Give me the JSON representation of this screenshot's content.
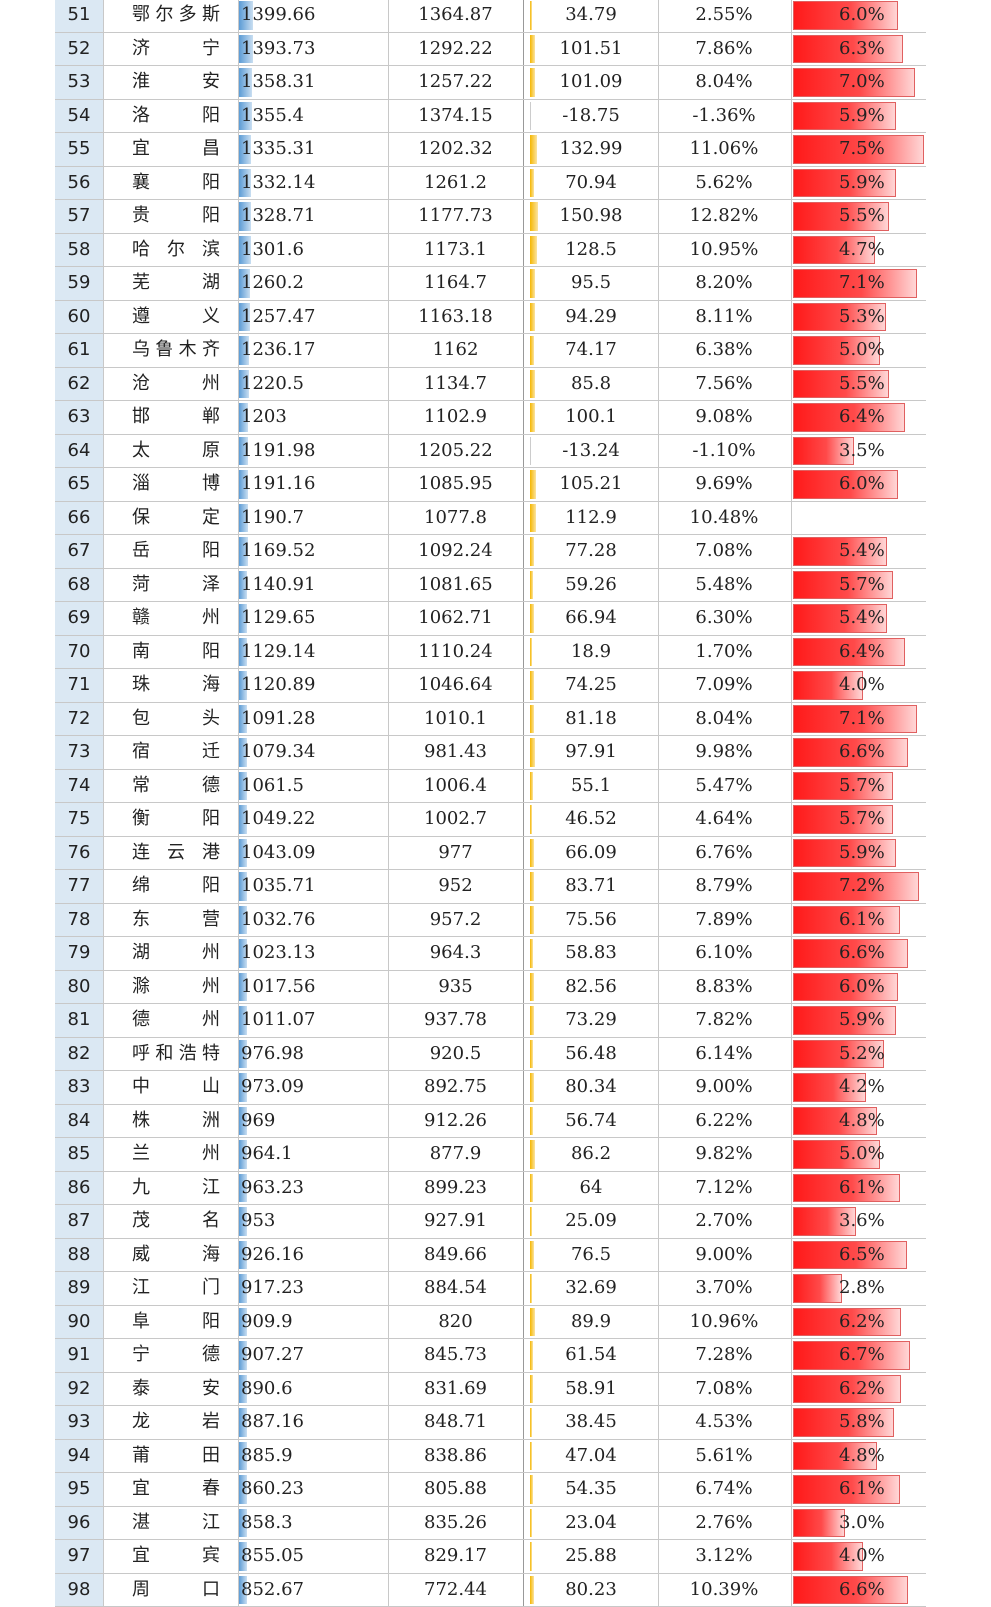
{
  "table": {
    "rows": [
      {
        "rank": "51",
        "city": "鄂尔多斯",
        "gdp": "1399.66",
        "prev": "1364.87",
        "inc": "34.79",
        "rate": "2.55%",
        "share": "6.0%",
        "share_value": 6.0,
        "gdp_value": 1399.66,
        "inc_value": 34.79
      },
      {
        "rank": "52",
        "city": "济 宁",
        "gdp": "1393.73",
        "prev": "1292.22",
        "inc": "101.51",
        "rate": "7.86%",
        "share": "6.3%",
        "share_value": 6.3,
        "gdp_value": 1393.73,
        "inc_value": 101.51
      },
      {
        "rank": "53",
        "city": "淮 安",
        "gdp": "1358.31",
        "prev": "1257.22",
        "inc": "101.09",
        "rate": "8.04%",
        "share": "7.0%",
        "share_value": 7.0,
        "gdp_value": 1358.31,
        "inc_value": 101.09
      },
      {
        "rank": "54",
        "city": "洛 阳",
        "gdp": "1355.4",
        "prev": "1374.15",
        "inc": "-18.75",
        "rate": "-1.36%",
        "share": "5.9%",
        "share_value": 5.9,
        "gdp_value": 1355.4,
        "inc_value": -18.75
      },
      {
        "rank": "55",
        "city": "宜 昌",
        "gdp": "1335.31",
        "prev": "1202.32",
        "inc": "132.99",
        "rate": "11.06%",
        "share": "7.5%",
        "share_value": 7.5,
        "gdp_value": 1335.31,
        "inc_value": 132.99
      },
      {
        "rank": "56",
        "city": "襄 阳",
        "gdp": "1332.14",
        "prev": "1261.2",
        "inc": "70.94",
        "rate": "5.62%",
        "share": "5.9%",
        "share_value": 5.9,
        "gdp_value": 1332.14,
        "inc_value": 70.94
      },
      {
        "rank": "57",
        "city": "贵 阳",
        "gdp": "1328.71",
        "prev": "1177.73",
        "inc": "150.98",
        "rate": "12.82%",
        "share": "5.5%",
        "share_value": 5.5,
        "gdp_value": 1328.71,
        "inc_value": 150.98
      },
      {
        "rank": "58",
        "city": "哈尔滨",
        "gdp": "1301.6",
        "prev": "1173.1",
        "inc": "128.5",
        "rate": "10.95%",
        "share": "4.7%",
        "share_value": 4.7,
        "gdp_value": 1301.6,
        "inc_value": 128.5
      },
      {
        "rank": "59",
        "city": "芜 湖",
        "gdp": "1260.2",
        "prev": "1164.7",
        "inc": "95.5",
        "rate": "8.20%",
        "share": "7.1%",
        "share_value": 7.1,
        "gdp_value": 1260.2,
        "inc_value": 95.5
      },
      {
        "rank": "60",
        "city": "遵 义",
        "gdp": "1257.47",
        "prev": "1163.18",
        "inc": "94.29",
        "rate": "8.11%",
        "share": "5.3%",
        "share_value": 5.3,
        "gdp_value": 1257.47,
        "inc_value": 94.29
      },
      {
        "rank": "61",
        "city": "乌鲁木齐",
        "gdp": "1236.17",
        "prev": "1162",
        "inc": "74.17",
        "rate": "6.38%",
        "share": "5.0%",
        "share_value": 5.0,
        "gdp_value": 1236.17,
        "inc_value": 74.17
      },
      {
        "rank": "62",
        "city": "沧 州",
        "gdp": "1220.5",
        "prev": "1134.7",
        "inc": "85.8",
        "rate": "7.56%",
        "share": "5.5%",
        "share_value": 5.5,
        "gdp_value": 1220.5,
        "inc_value": 85.8
      },
      {
        "rank": "63",
        "city": "邯 郸",
        "gdp": "1203",
        "prev": "1102.9",
        "inc": "100.1",
        "rate": "9.08%",
        "share": "6.4%",
        "share_value": 6.4,
        "gdp_value": 1203,
        "inc_value": 100.1
      },
      {
        "rank": "64",
        "city": "太 原",
        "gdp": "1191.98",
        "prev": "1205.22",
        "inc": "-13.24",
        "rate": "-1.10%",
        "share": "3.5%",
        "share_value": 3.5,
        "gdp_value": 1191.98,
        "inc_value": -13.24
      },
      {
        "rank": "65",
        "city": "淄 博",
        "gdp": "1191.16",
        "prev": "1085.95",
        "inc": "105.21",
        "rate": "9.69%",
        "share": "6.0%",
        "share_value": 6.0,
        "gdp_value": 1191.16,
        "inc_value": 105.21
      },
      {
        "rank": "66",
        "city": "保 定",
        "gdp": "1190.7",
        "prev": "1077.8",
        "inc": "112.9",
        "rate": "10.48%",
        "share": "",
        "share_value": 0,
        "gdp_value": 1190.7,
        "inc_value": 112.9
      },
      {
        "rank": "67",
        "city": "岳 阳",
        "gdp": "1169.52",
        "prev": "1092.24",
        "inc": "77.28",
        "rate": "7.08%",
        "share": "5.4%",
        "share_value": 5.4,
        "gdp_value": 1169.52,
        "inc_value": 77.28
      },
      {
        "rank": "68",
        "city": "菏 泽",
        "gdp": "1140.91",
        "prev": "1081.65",
        "inc": "59.26",
        "rate": "5.48%",
        "share": "5.7%",
        "share_value": 5.7,
        "gdp_value": 1140.91,
        "inc_value": 59.26
      },
      {
        "rank": "69",
        "city": "赣 州",
        "gdp": "1129.65",
        "prev": "1062.71",
        "inc": "66.94",
        "rate": "6.30%",
        "share": "5.4%",
        "share_value": 5.4,
        "gdp_value": 1129.65,
        "inc_value": 66.94
      },
      {
        "rank": "70",
        "city": "南 阳",
        "gdp": "1129.14",
        "prev": "1110.24",
        "inc": "18.9",
        "rate": "1.70%",
        "share": "6.4%",
        "share_value": 6.4,
        "gdp_value": 1129.14,
        "inc_value": 18.9
      },
      {
        "rank": "71",
        "city": "珠 海",
        "gdp": "1120.89",
        "prev": "1046.64",
        "inc": "74.25",
        "rate": "7.09%",
        "share": "4.0%",
        "share_value": 4.0,
        "gdp_value": 1120.89,
        "inc_value": 74.25
      },
      {
        "rank": "72",
        "city": "包 头",
        "gdp": "1091.28",
        "prev": "1010.1",
        "inc": "81.18",
        "rate": "8.04%",
        "share": "7.1%",
        "share_value": 7.1,
        "gdp_value": 1091.28,
        "inc_value": 81.18
      },
      {
        "rank": "73",
        "city": "宿 迁",
        "gdp": "1079.34",
        "prev": "981.43",
        "inc": "97.91",
        "rate": "9.98%",
        "share": "6.6%",
        "share_value": 6.6,
        "gdp_value": 1079.34,
        "inc_value": 97.91
      },
      {
        "rank": "74",
        "city": "常 德",
        "gdp": "1061.5",
        "prev": "1006.4",
        "inc": "55.1",
        "rate": "5.47%",
        "share": "5.7%",
        "share_value": 5.7,
        "gdp_value": 1061.5,
        "inc_value": 55.1
      },
      {
        "rank": "75",
        "city": "衡 阳",
        "gdp": "1049.22",
        "prev": "1002.7",
        "inc": "46.52",
        "rate": "4.64%",
        "share": "5.7%",
        "share_value": 5.7,
        "gdp_value": 1049.22,
        "inc_value": 46.52
      },
      {
        "rank": "76",
        "city": "连云港",
        "gdp": "1043.09",
        "prev": "977",
        "inc": "66.09",
        "rate": "6.76%",
        "share": "5.9%",
        "share_value": 5.9,
        "gdp_value": 1043.09,
        "inc_value": 66.09
      },
      {
        "rank": "77",
        "city": "绵 阳",
        "gdp": "1035.71",
        "prev": "952",
        "inc": "83.71",
        "rate": "8.79%",
        "share": "7.2%",
        "share_value": 7.2,
        "gdp_value": 1035.71,
        "inc_value": 83.71
      },
      {
        "rank": "78",
        "city": "东 营",
        "gdp": "1032.76",
        "prev": "957.2",
        "inc": "75.56",
        "rate": "7.89%",
        "share": "6.1%",
        "share_value": 6.1,
        "gdp_value": 1032.76,
        "inc_value": 75.56
      },
      {
        "rank": "79",
        "city": "湖 州",
        "gdp": "1023.13",
        "prev": "964.3",
        "inc": "58.83",
        "rate": "6.10%",
        "share": "6.6%",
        "share_value": 6.6,
        "gdp_value": 1023.13,
        "inc_value": 58.83
      },
      {
        "rank": "80",
        "city": "滁 州",
        "gdp": "1017.56",
        "prev": "935",
        "inc": "82.56",
        "rate": "8.83%",
        "share": "6.0%",
        "share_value": 6.0,
        "gdp_value": 1017.56,
        "inc_value": 82.56
      },
      {
        "rank": "81",
        "city": "德 州",
        "gdp": "1011.07",
        "prev": "937.78",
        "inc": "73.29",
        "rate": "7.82%",
        "share": "5.9%",
        "share_value": 5.9,
        "gdp_value": 1011.07,
        "inc_value": 73.29
      },
      {
        "rank": "82",
        "city": "呼和浩特",
        "gdp": "976.98",
        "prev": "920.5",
        "inc": "56.48",
        "rate": "6.14%",
        "share": "5.2%",
        "share_value": 5.2,
        "gdp_value": 976.98,
        "inc_value": 56.48
      },
      {
        "rank": "83",
        "city": "中 山",
        "gdp": "973.09",
        "prev": "892.75",
        "inc": "80.34",
        "rate": "9.00%",
        "share": "4.2%",
        "share_value": 4.2,
        "gdp_value": 973.09,
        "inc_value": 80.34
      },
      {
        "rank": "84",
        "city": "株 洲",
        "gdp": "969",
        "prev": "912.26",
        "inc": "56.74",
        "rate": "6.22%",
        "share": "4.8%",
        "share_value": 4.8,
        "gdp_value": 969,
        "inc_value": 56.74
      },
      {
        "rank": "85",
        "city": "兰 州",
        "gdp": "964.1",
        "prev": "877.9",
        "inc": "86.2",
        "rate": "9.82%",
        "share": "5.0%",
        "share_value": 5.0,
        "gdp_value": 964.1,
        "inc_value": 86.2
      },
      {
        "rank": "86",
        "city": "九 江",
        "gdp": "963.23",
        "prev": "899.23",
        "inc": "64",
        "rate": "7.12%",
        "share": "6.1%",
        "share_value": 6.1,
        "gdp_value": 963.23,
        "inc_value": 64
      },
      {
        "rank": "87",
        "city": "茂 名",
        "gdp": "953",
        "prev": "927.91",
        "inc": "25.09",
        "rate": "2.70%",
        "share": "3.6%",
        "share_value": 3.6,
        "gdp_value": 953,
        "inc_value": 25.09
      },
      {
        "rank": "88",
        "city": "威 海",
        "gdp": "926.16",
        "prev": "849.66",
        "inc": "76.5",
        "rate": "9.00%",
        "share": "6.5%",
        "share_value": 6.5,
        "gdp_value": 926.16,
        "inc_value": 76.5
      },
      {
        "rank": "89",
        "city": "江 门",
        "gdp": "917.23",
        "prev": "884.54",
        "inc": "32.69",
        "rate": "3.70%",
        "share": "2.8%",
        "share_value": 2.8,
        "gdp_value": 917.23,
        "inc_value": 32.69
      },
      {
        "rank": "90",
        "city": "阜 阳",
        "gdp": "909.9",
        "prev": "820",
        "inc": "89.9",
        "rate": "10.96%",
        "share": "6.2%",
        "share_value": 6.2,
        "gdp_value": 909.9,
        "inc_value": 89.9
      },
      {
        "rank": "91",
        "city": "宁 德",
        "gdp": "907.27",
        "prev": "845.73",
        "inc": "61.54",
        "rate": "7.28%",
        "share": "6.7%",
        "share_value": 6.7,
        "gdp_value": 907.27,
        "inc_value": 61.54
      },
      {
        "rank": "92",
        "city": "泰 安",
        "gdp": "890.6",
        "prev": "831.69",
        "inc": "58.91",
        "rate": "7.08%",
        "share": "6.2%",
        "share_value": 6.2,
        "gdp_value": 890.6,
        "inc_value": 58.91
      },
      {
        "rank": "93",
        "city": "龙 岩",
        "gdp": "887.16",
        "prev": "848.71",
        "inc": "38.45",
        "rate": "4.53%",
        "share": "5.8%",
        "share_value": 5.8,
        "gdp_value": 887.16,
        "inc_value": 38.45
      },
      {
        "rank": "94",
        "city": "莆 田",
        "gdp": "885.9",
        "prev": "838.86",
        "inc": "47.04",
        "rate": "5.61%",
        "share": "4.8%",
        "share_value": 4.8,
        "gdp_value": 885.9,
        "inc_value": 47.04
      },
      {
        "rank": "95",
        "city": "宜 春",
        "gdp": "860.23",
        "prev": "805.88",
        "inc": "54.35",
        "rate": "6.74%",
        "share": "6.1%",
        "share_value": 6.1,
        "gdp_value": 860.23,
        "inc_value": 54.35
      },
      {
        "rank": "96",
        "city": "湛 江",
        "gdp": "858.3",
        "prev": "835.26",
        "inc": "23.04",
        "rate": "2.76%",
        "share": "3.0%",
        "share_value": 3.0,
        "gdp_value": 858.3,
        "inc_value": 23.04
      },
      {
        "rank": "97",
        "city": "宜 宾",
        "gdp": "855.05",
        "prev": "829.17",
        "inc": "25.88",
        "rate": "3.12%",
        "share": "4.0%",
        "share_value": 4.0,
        "gdp_value": 855.05,
        "inc_value": 25.88
      },
      {
        "rank": "98",
        "city": "周 口",
        "gdp": "852.67",
        "prev": "772.44",
        "inc": "80.23",
        "rate": "10.39%",
        "share": "6.6%",
        "share_value": 6.6,
        "gdp_value": 852.67,
        "inc_value": 80.23
      }
    ]
  },
  "colors": {
    "rank_fill": "#dbe8f3",
    "gdp_bar": "#5b9bd5",
    "inc_bar": "#f5b700",
    "share_bar": "#ff1a1a",
    "grid": "#c8c8c8"
  }
}
